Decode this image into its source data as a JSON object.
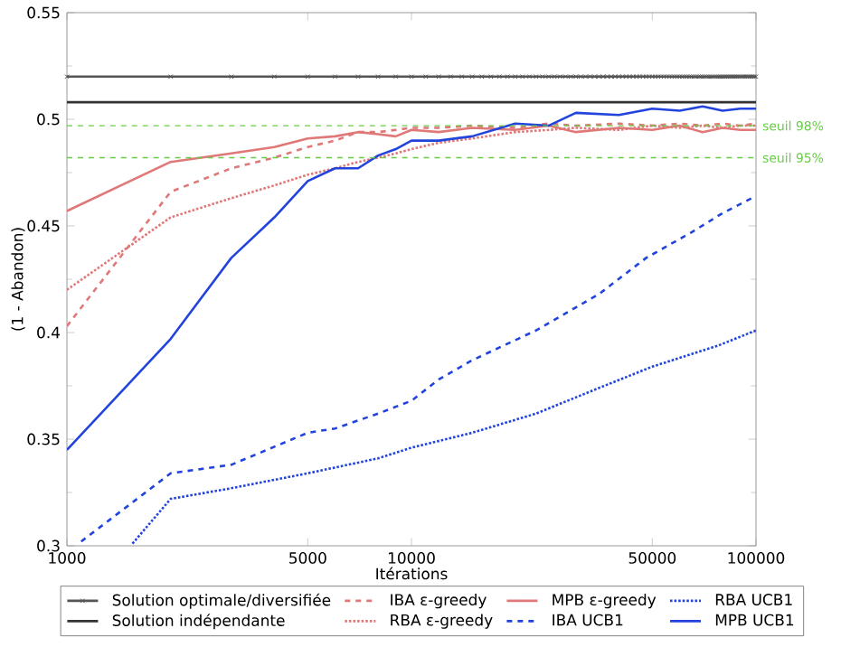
{
  "chart_data": {
    "type": "line",
    "xlabel": "Itérations",
    "ylabel": "(1 - Abandon)",
    "log": "x",
    "legend": "bottom",
    "grid": false,
    "xlim": [
      1000,
      100000
    ],
    "xticks": [
      1000,
      5000,
      10000,
      50000,
      100000
    ],
    "ylim": [
      0.3,
      0.55
    ],
    "yticks": [
      0.3,
      0.35,
      0.4,
      0.45,
      0.5,
      0.55
    ],
    "ref_lines": [
      {
        "axis": "y",
        "value": 0.497,
        "label": "seuil 98%",
        "color": "#66cc44",
        "line_style": "dashed"
      },
      {
        "axis": "y",
        "value": 0.482,
        "label": "seuil 95%",
        "color": "#66cc44",
        "line_style": "dashed"
      }
    ],
    "series": [
      {
        "name": "Solution optimale/diversifiée",
        "color": "#555555",
        "marker": "cross",
        "line_style": "solid",
        "x": [
          1000,
          2000,
          3000,
          4000,
          5000,
          6000,
          7000,
          8000,
          9000,
          10000,
          11000,
          12000,
          13000,
          14000,
          15000,
          16000,
          17000,
          18000,
          19000,
          20000,
          21000,
          22000,
          23000,
          24000,
          25000,
          26000,
          27000,
          28000,
          29000,
          30000,
          31000,
          32000,
          33000,
          34000,
          35000,
          36000,
          37000,
          38000,
          39000,
          40000,
          41000,
          42000,
          43000,
          44000,
          45000,
          46000,
          47000,
          48000,
          49000,
          50000,
          51000,
          52000,
          53000,
          54000,
          55000,
          56000,
          57000,
          58000,
          59000,
          60000,
          61000,
          62000,
          63000,
          64000,
          65000,
          66000,
          67000,
          68000,
          69000,
          70000,
          71000,
          72000,
          73000,
          74000,
          75000,
          76000,
          77000,
          78000,
          79000,
          80000,
          81000,
          82000,
          83000,
          84000,
          85000,
          86000,
          87000,
          88000,
          89000,
          90000,
          91000,
          92000,
          93000,
          94000,
          95000,
          96000,
          97000,
          98000,
          99000,
          100000
        ],
        "values": [
          0.52,
          0.52,
          0.52,
          0.52,
          0.52,
          0.52,
          0.52,
          0.52,
          0.52,
          0.52,
          0.52,
          0.52,
          0.52,
          0.52,
          0.52,
          0.52,
          0.52,
          0.52,
          0.52,
          0.52,
          0.52,
          0.52,
          0.52,
          0.52,
          0.52,
          0.52,
          0.52,
          0.52,
          0.52,
          0.52,
          0.52,
          0.52,
          0.52,
          0.52,
          0.52,
          0.52,
          0.52,
          0.52,
          0.52,
          0.52,
          0.52,
          0.52,
          0.52,
          0.52,
          0.52,
          0.52,
          0.52,
          0.52,
          0.52,
          0.52,
          0.52,
          0.52,
          0.52,
          0.52,
          0.52,
          0.52,
          0.52,
          0.52,
          0.52,
          0.52,
          0.52,
          0.52,
          0.52,
          0.52,
          0.52,
          0.52,
          0.52,
          0.52,
          0.52,
          0.52,
          0.52,
          0.52,
          0.52,
          0.52,
          0.52,
          0.52,
          0.52,
          0.52,
          0.52,
          0.52,
          0.52,
          0.52,
          0.52,
          0.52,
          0.52,
          0.52,
          0.52,
          0.52,
          0.52,
          0.52,
          0.52,
          0.52,
          0.52,
          0.52,
          0.52,
          0.52,
          0.52,
          0.52,
          0.52,
          0.52
        ]
      },
      {
        "name": "Solution indépendante",
        "color": "#333333",
        "marker": "none",
        "line_style": "solid",
        "x": [
          1000,
          100000
        ],
        "values": [
          0.508,
          0.508
        ]
      },
      {
        "name": "IBA ε-greedy",
        "color": "#e07878",
        "marker": "none",
        "line_style": "dashed",
        "x": [
          1000,
          2000,
          3000,
          4000,
          5000,
          6000,
          7000,
          8000,
          9000,
          10000,
          12000,
          15000,
          20000,
          25000,
          30000,
          40000,
          50000,
          60000,
          70000,
          80000,
          90000,
          100000
        ],
        "values": [
          0.403,
          0.466,
          0.477,
          0.482,
          0.487,
          0.49,
          0.494,
          0.494,
          0.495,
          0.496,
          0.496,
          0.497,
          0.496,
          0.498,
          0.497,
          0.498,
          0.497,
          0.498,
          0.497,
          0.498,
          0.497,
          0.498
        ]
      },
      {
        "name": "RBA ε-greedy",
        "color": "#e07878",
        "marker": "none",
        "line_style": "dotted",
        "x": [
          1000,
          2000,
          3000,
          4000,
          5000,
          6000,
          7000,
          8000,
          9000,
          10000,
          12000,
          15000,
          20000,
          25000,
          30000,
          40000,
          50000,
          60000,
          70000,
          80000,
          90000,
          100000
        ],
        "values": [
          0.42,
          0.454,
          0.463,
          0.469,
          0.474,
          0.477,
          0.48,
          0.482,
          0.484,
          0.486,
          0.489,
          0.491,
          0.494,
          0.495,
          0.496,
          0.495,
          0.497,
          0.496,
          0.497,
          0.496,
          0.497,
          0.497
        ]
      },
      {
        "name": "MPB ε-greedy",
        "color": "#e07878",
        "marker": "none",
        "line_style": "solid",
        "x": [
          1000,
          2000,
          3000,
          4000,
          5000,
          6000,
          7000,
          8000,
          9000,
          10000,
          12000,
          15000,
          20000,
          25000,
          30000,
          40000,
          50000,
          60000,
          70000,
          80000,
          90000,
          100000
        ],
        "values": [
          0.457,
          0.48,
          0.484,
          0.487,
          0.491,
          0.492,
          0.494,
          0.493,
          0.492,
          0.495,
          0.494,
          0.496,
          0.495,
          0.497,
          0.494,
          0.496,
          0.495,
          0.497,
          0.494,
          0.496,
          0.495,
          0.495
        ]
      },
      {
        "name": "IBA UCB1",
        "color": "#2244dd",
        "marker": "none",
        "line_style": "dashed",
        "x": [
          1100,
          2000,
          3000,
          5000,
          6000,
          8000,
          10000,
          12000,
          15000,
          23000,
          35000,
          48000,
          65000,
          80000,
          100000
        ],
        "values": [
          0.302,
          0.334,
          0.338,
          0.353,
          0.355,
          0.362,
          0.368,
          0.378,
          0.387,
          0.401,
          0.418,
          0.435,
          0.447,
          0.456,
          0.464
        ]
      },
      {
        "name": "RBA UCB1",
        "color": "#2244dd",
        "marker": "none",
        "line_style": "dotted",
        "x": [
          1550,
          2000,
          3000,
          5000,
          8000,
          10000,
          15000,
          23000,
          35000,
          50000,
          78000,
          100000
        ],
        "values": [
          0.301,
          0.322,
          0.327,
          0.334,
          0.341,
          0.346,
          0.353,
          0.362,
          0.374,
          0.384,
          0.394,
          0.401
        ]
      },
      {
        "name": "MPB UCB1",
        "color": "#2244dd",
        "marker": "none",
        "line_style": "solid",
        "x": [
          1000,
          2000,
          3000,
          4000,
          5000,
          6000,
          7000,
          8000,
          9000,
          10000,
          12000,
          15000,
          20000,
          25000,
          30000,
          40000,
          50000,
          60000,
          70000,
          80000,
          90000,
          100000
        ],
        "values": [
          0.345,
          0.397,
          0.435,
          0.454,
          0.471,
          0.477,
          0.477,
          0.483,
          0.486,
          0.49,
          0.49,
          0.492,
          0.498,
          0.497,
          0.503,
          0.502,
          0.505,
          0.504,
          0.506,
          0.504,
          0.505,
          0.505
        ]
      }
    ]
  }
}
